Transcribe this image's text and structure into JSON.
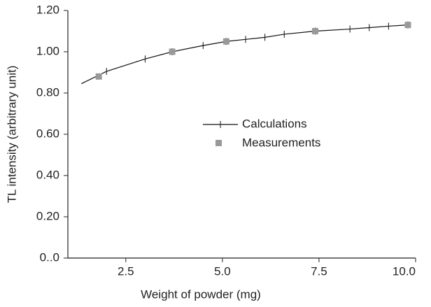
{
  "chart_data": {
    "type": "line",
    "x_label": "Weight of powder  (mg)",
    "y_label": "TL intensity  (arbitrary unit)",
    "xlim": [
      1,
      10
    ],
    "xticks": [
      2.5,
      {
        "value": 5,
        "label": "5.0"
      },
      7.5,
      {
        "value": 10,
        "label": "10.0"
      }
    ],
    "ylim": [
      0,
      1.2
    ],
    "yticks": [
      {
        "value": 0,
        "label": "0..0"
      },
      {
        "value": 0.2,
        "label": "0.20"
      },
      {
        "value": 0.4,
        "label": "0.40"
      },
      {
        "value": 0.6,
        "label": "0.60"
      },
      {
        "value": 0.8,
        "label": "0.80"
      },
      {
        "value": 1,
        "label": "1.00"
      },
      {
        "value": 1.2,
        "label": "1.20"
      }
    ],
    "series": [
      {
        "name": "Calculations",
        "color": "#111111",
        "x": [
          1.35,
          2,
          3,
          3.7,
          4.5,
          5.1,
          5.6,
          6.1,
          6.6,
          7.4,
          8.3,
          8.8,
          9.3,
          9.8
        ],
        "values": [
          0.845,
          0.905,
          0.965,
          1.0,
          1.03,
          1.05,
          1.06,
          1.07,
          1.085,
          1.1,
          1.11,
          1.117,
          1.124,
          1.13
        ]
      },
      {
        "name": "Measurements",
        "color": "#999999",
        "x": [
          1.8,
          3.7,
          5.1,
          7.4,
          9.8
        ],
        "values": [
          0.88,
          1.0,
          1.05,
          1.1,
          1.13
        ]
      }
    ]
  }
}
